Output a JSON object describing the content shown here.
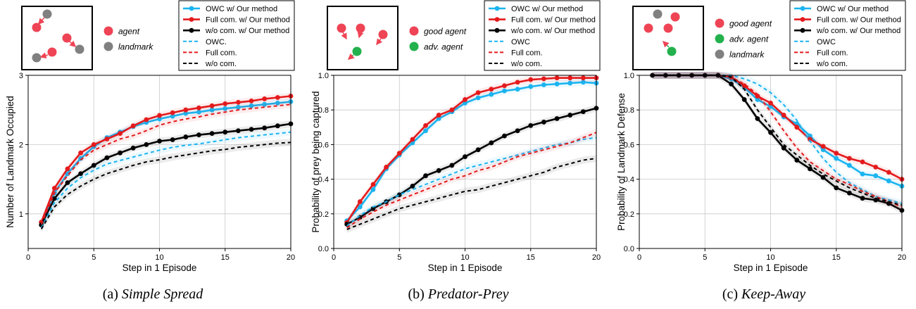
{
  "chart_data": [
    {
      "type": "line",
      "caption_label": "(a)",
      "caption_title": "Simple Spread",
      "xlabel": "Step in 1 Episode",
      "ylabel": "Number of Landmark Occupied",
      "xlim": [
        0,
        20
      ],
      "ylim": [
        0.5,
        3
      ],
      "xticks": [
        0,
        5,
        10,
        15,
        20
      ],
      "yticks": [
        1,
        2,
        3
      ],
      "grid": true,
      "legend_position": "top-right",
      "inset_legend": [
        {
          "label": "agent",
          "color": "#ee4455"
        },
        {
          "label": "landmark",
          "color": "#808080"
        }
      ],
      "series": [
        {
          "name": "OWC w/ Our method",
          "color": "#1ab4f0",
          "style": "solid-marker",
          "x": [
            1,
            2,
            3,
            4,
            5,
            6,
            7,
            8,
            9,
            10,
            11,
            12,
            13,
            14,
            15,
            16,
            17,
            18,
            19,
            20
          ],
          "y": [
            0.88,
            1.3,
            1.58,
            1.8,
            1.97,
            2.1,
            2.18,
            2.26,
            2.32,
            2.37,
            2.41,
            2.45,
            2.47,
            2.5,
            2.52,
            2.54,
            2.56,
            2.58,
            2.6,
            2.62
          ]
        },
        {
          "name": "Full com. w/ Our method",
          "color": "#e41a1c",
          "style": "solid-marker",
          "x": [
            1,
            2,
            3,
            4,
            5,
            6,
            7,
            8,
            9,
            10,
            11,
            12,
            13,
            14,
            15,
            16,
            17,
            18,
            19,
            20
          ],
          "y": [
            0.88,
            1.37,
            1.65,
            1.88,
            2.0,
            2.08,
            2.16,
            2.27,
            2.36,
            2.42,
            2.46,
            2.5,
            2.53,
            2.56,
            2.59,
            2.61,
            2.63,
            2.66,
            2.68,
            2.7
          ]
        },
        {
          "name": "w/o com. w/ Our method",
          "color": "#000000",
          "style": "solid-marker",
          "x": [
            1,
            2,
            3,
            4,
            5,
            6,
            7,
            8,
            9,
            10,
            11,
            12,
            13,
            14,
            15,
            16,
            17,
            18,
            19,
            20
          ],
          "y": [
            0.84,
            1.22,
            1.45,
            1.58,
            1.7,
            1.81,
            1.88,
            1.95,
            2.0,
            2.05,
            2.07,
            2.11,
            2.14,
            2.16,
            2.18,
            2.2,
            2.22,
            2.24,
            2.27,
            2.3
          ]
        },
        {
          "name": "OWC.",
          "color": "#1ab4f0",
          "style": "dashed",
          "x": [
            1,
            2,
            3,
            4,
            5,
            6,
            7,
            8,
            9,
            10,
            11,
            12,
            13,
            14,
            15,
            16,
            17,
            18,
            19,
            20
          ],
          "y": [
            0.8,
            1.16,
            1.37,
            1.52,
            1.63,
            1.72,
            1.77,
            1.82,
            1.87,
            1.92,
            1.96,
            1.99,
            2.01,
            2.04,
            2.07,
            2.1,
            2.12,
            2.14,
            2.16,
            2.18
          ]
        },
        {
          "name": "Full com.",
          "color": "#e41a1c",
          "style": "dashed",
          "x": [
            1,
            2,
            3,
            4,
            5,
            6,
            7,
            8,
            9,
            10,
            11,
            12,
            13,
            14,
            15,
            16,
            17,
            18,
            19,
            20
          ],
          "y": [
            0.85,
            1.3,
            1.55,
            1.78,
            1.92,
            2.0,
            2.08,
            2.13,
            2.2,
            2.28,
            2.33,
            2.37,
            2.4,
            2.44,
            2.47,
            2.5,
            2.52,
            2.54,
            2.56,
            2.58
          ]
        },
        {
          "name": "w/o com.",
          "color": "#000000",
          "style": "dashed",
          "x": [
            1,
            2,
            3,
            4,
            5,
            6,
            7,
            8,
            9,
            10,
            11,
            12,
            13,
            14,
            15,
            16,
            17,
            18,
            19,
            20
          ],
          "y": [
            0.78,
            1.1,
            1.28,
            1.4,
            1.5,
            1.58,
            1.64,
            1.7,
            1.75,
            1.78,
            1.82,
            1.85,
            1.88,
            1.91,
            1.93,
            1.96,
            1.98,
            2.0,
            2.02,
            2.03
          ]
        }
      ]
    },
    {
      "type": "line",
      "caption_label": "(b)",
      "caption_title": "Predator-Prey",
      "xlabel": "Step in 1 Episode",
      "ylabel": "Probability of prey being captured",
      "xlim": [
        0,
        20
      ],
      "ylim": [
        0,
        1
      ],
      "xticks": [
        0,
        5,
        10,
        15,
        20
      ],
      "yticks": [
        0.0,
        0.2,
        0.4,
        0.6,
        0.8,
        1.0
      ],
      "grid": true,
      "legend_position": "top-right",
      "inset_legend": [
        {
          "label": "good agent",
          "color": "#ee4455"
        },
        {
          "label": "adv. agent",
          "color": "#22b14c"
        }
      ],
      "series": [
        {
          "name": "OWC w/ Our method",
          "color": "#1ab4f0",
          "style": "solid-marker",
          "x": [
            1,
            2,
            3,
            4,
            5,
            6,
            7,
            8,
            9,
            10,
            11,
            12,
            13,
            14,
            15,
            16,
            17,
            18,
            19,
            20
          ],
          "y": [
            0.16,
            0.24,
            0.34,
            0.46,
            0.54,
            0.61,
            0.68,
            0.75,
            0.79,
            0.84,
            0.87,
            0.89,
            0.91,
            0.92,
            0.935,
            0.945,
            0.95,
            0.955,
            0.96,
            0.955
          ]
        },
        {
          "name": "Full com. w/ Our method",
          "color": "#e41a1c",
          "style": "solid-marker",
          "x": [
            1,
            2,
            3,
            4,
            5,
            6,
            7,
            8,
            9,
            10,
            11,
            12,
            13,
            14,
            15,
            16,
            17,
            18,
            19,
            20
          ],
          "y": [
            0.15,
            0.27,
            0.37,
            0.47,
            0.55,
            0.63,
            0.71,
            0.77,
            0.8,
            0.86,
            0.9,
            0.92,
            0.94,
            0.96,
            0.975,
            0.98,
            0.985,
            0.985,
            0.985,
            0.985
          ]
        },
        {
          "name": "w/o com. w/ Our method",
          "color": "#000000",
          "style": "solid-marker",
          "x": [
            1,
            2,
            3,
            4,
            5,
            6,
            7,
            8,
            9,
            10,
            11,
            12,
            13,
            14,
            15,
            16,
            17,
            18,
            19,
            20
          ],
          "y": [
            0.14,
            0.18,
            0.23,
            0.27,
            0.31,
            0.36,
            0.42,
            0.45,
            0.48,
            0.53,
            0.57,
            0.61,
            0.65,
            0.68,
            0.71,
            0.73,
            0.75,
            0.77,
            0.79,
            0.81
          ]
        },
        {
          "name": "OWC",
          "color": "#1ab4f0",
          "style": "dashed",
          "x": [
            1,
            2,
            3,
            4,
            5,
            6,
            7,
            8,
            9,
            10,
            11,
            12,
            13,
            14,
            15,
            16,
            17,
            18,
            19,
            20
          ],
          "y": [
            0.13,
            0.19,
            0.24,
            0.27,
            0.31,
            0.34,
            0.37,
            0.4,
            0.43,
            0.46,
            0.48,
            0.5,
            0.52,
            0.54,
            0.56,
            0.58,
            0.6,
            0.61,
            0.63,
            0.64
          ]
        },
        {
          "name": "Full com.",
          "color": "#e41a1c",
          "style": "dashed",
          "x": [
            1,
            2,
            3,
            4,
            5,
            6,
            7,
            8,
            9,
            10,
            11,
            12,
            13,
            14,
            15,
            16,
            17,
            18,
            19,
            20
          ],
          "y": [
            0.12,
            0.17,
            0.21,
            0.25,
            0.28,
            0.31,
            0.34,
            0.37,
            0.4,
            0.42,
            0.45,
            0.47,
            0.5,
            0.53,
            0.55,
            0.57,
            0.59,
            0.61,
            0.64,
            0.67
          ]
        },
        {
          "name": "w/o com.",
          "color": "#000000",
          "style": "dashed",
          "x": [
            1,
            2,
            3,
            4,
            5,
            6,
            7,
            8,
            9,
            10,
            11,
            12,
            13,
            14,
            15,
            16,
            17,
            18,
            19,
            20
          ],
          "y": [
            0.11,
            0.14,
            0.17,
            0.2,
            0.23,
            0.25,
            0.27,
            0.29,
            0.31,
            0.33,
            0.34,
            0.36,
            0.38,
            0.4,
            0.42,
            0.44,
            0.47,
            0.49,
            0.51,
            0.52
          ]
        }
      ]
    },
    {
      "type": "line",
      "caption_label": "(c)",
      "caption_title": "Keep-Away",
      "xlabel": "Step in 1 Episode",
      "ylabel": "Probability of Landmark Defense",
      "xlim": [
        0,
        20
      ],
      "ylim": [
        0,
        1
      ],
      "xticks": [
        0,
        5,
        10,
        15,
        20
      ],
      "yticks": [
        0.0,
        0.2,
        0.4,
        0.6,
        0.8,
        1.0
      ],
      "grid": true,
      "legend_position": "top-right",
      "inset_legend": [
        {
          "label": "good agent",
          "color": "#ee4455"
        },
        {
          "label": "adv. agent",
          "color": "#22b14c"
        },
        {
          "label": "landmark",
          "color": "#808080"
        }
      ],
      "series": [
        {
          "name": "OWC w/ Our method",
          "color": "#1ab4f0",
          "style": "solid-marker",
          "x": [
            1,
            2,
            3,
            4,
            5,
            6,
            7,
            8,
            9,
            10,
            11,
            12,
            13,
            14,
            15,
            16,
            17,
            18,
            19,
            20
          ],
          "y": [
            1.0,
            1.0,
            1.0,
            1.0,
            1.0,
            1.0,
            0.98,
            0.93,
            0.86,
            0.82,
            0.76,
            0.72,
            0.65,
            0.57,
            0.52,
            0.48,
            0.43,
            0.42,
            0.39,
            0.36
          ]
        },
        {
          "name": "Full com. w/ Our method",
          "color": "#e41a1c",
          "style": "solid-marker",
          "x": [
            1,
            2,
            3,
            4,
            5,
            6,
            7,
            8,
            9,
            10,
            11,
            12,
            13,
            14,
            15,
            16,
            17,
            18,
            19,
            20
          ],
          "y": [
            1.0,
            1.0,
            1.0,
            1.0,
            1.0,
            1.0,
            0.99,
            0.94,
            0.88,
            0.84,
            0.77,
            0.7,
            0.63,
            0.59,
            0.55,
            0.52,
            0.5,
            0.47,
            0.44,
            0.4
          ]
        },
        {
          "name": "w/o com. w/ Our method",
          "color": "#000000",
          "style": "solid-marker",
          "x": [
            1,
            2,
            3,
            4,
            5,
            6,
            7,
            8,
            9,
            10,
            11,
            12,
            13,
            14,
            15,
            16,
            17,
            18,
            19,
            20
          ],
          "y": [
            1.0,
            1.0,
            1.0,
            1.0,
            1.0,
            1.0,
            0.95,
            0.86,
            0.75,
            0.67,
            0.58,
            0.51,
            0.46,
            0.41,
            0.35,
            0.32,
            0.29,
            0.28,
            0.26,
            0.22
          ]
        },
        {
          "name": "OWC",
          "color": "#1ab4f0",
          "style": "dashed",
          "x": [
            1,
            2,
            3,
            4,
            5,
            6,
            7,
            8,
            9,
            10,
            11,
            12,
            13,
            14,
            15,
            16,
            17,
            18,
            19,
            20
          ],
          "y": [
            1.0,
            1.0,
            1.0,
            1.0,
            1.0,
            1.0,
            1.0,
            0.98,
            0.95,
            0.9,
            0.83,
            0.74,
            0.62,
            0.52,
            0.44,
            0.38,
            0.34,
            0.3,
            0.28,
            0.26
          ]
        },
        {
          "name": "Full com.",
          "color": "#e41a1c",
          "style": "dashed",
          "x": [
            1,
            2,
            3,
            4,
            5,
            6,
            7,
            8,
            9,
            10,
            11,
            12,
            13,
            14,
            15,
            16,
            17,
            18,
            19,
            20
          ],
          "y": [
            1.0,
            1.0,
            1.0,
            1.0,
            1.0,
            1.0,
            0.99,
            0.95,
            0.89,
            0.79,
            0.68,
            0.58,
            0.5,
            0.45,
            0.4,
            0.37,
            0.33,
            0.3,
            0.27,
            0.24
          ]
        },
        {
          "name": "w/o com.",
          "color": "#000000",
          "style": "dashed",
          "x": [
            1,
            2,
            3,
            4,
            5,
            6,
            7,
            8,
            9,
            10,
            11,
            12,
            13,
            14,
            15,
            16,
            17,
            18,
            19,
            20
          ],
          "y": [
            1.0,
            1.0,
            1.0,
            1.0,
            1.0,
            1.0,
            0.99,
            0.92,
            0.8,
            0.7,
            0.6,
            0.54,
            0.48,
            0.43,
            0.39,
            0.35,
            0.32,
            0.29,
            0.27,
            0.25
          ]
        }
      ]
    }
  ]
}
